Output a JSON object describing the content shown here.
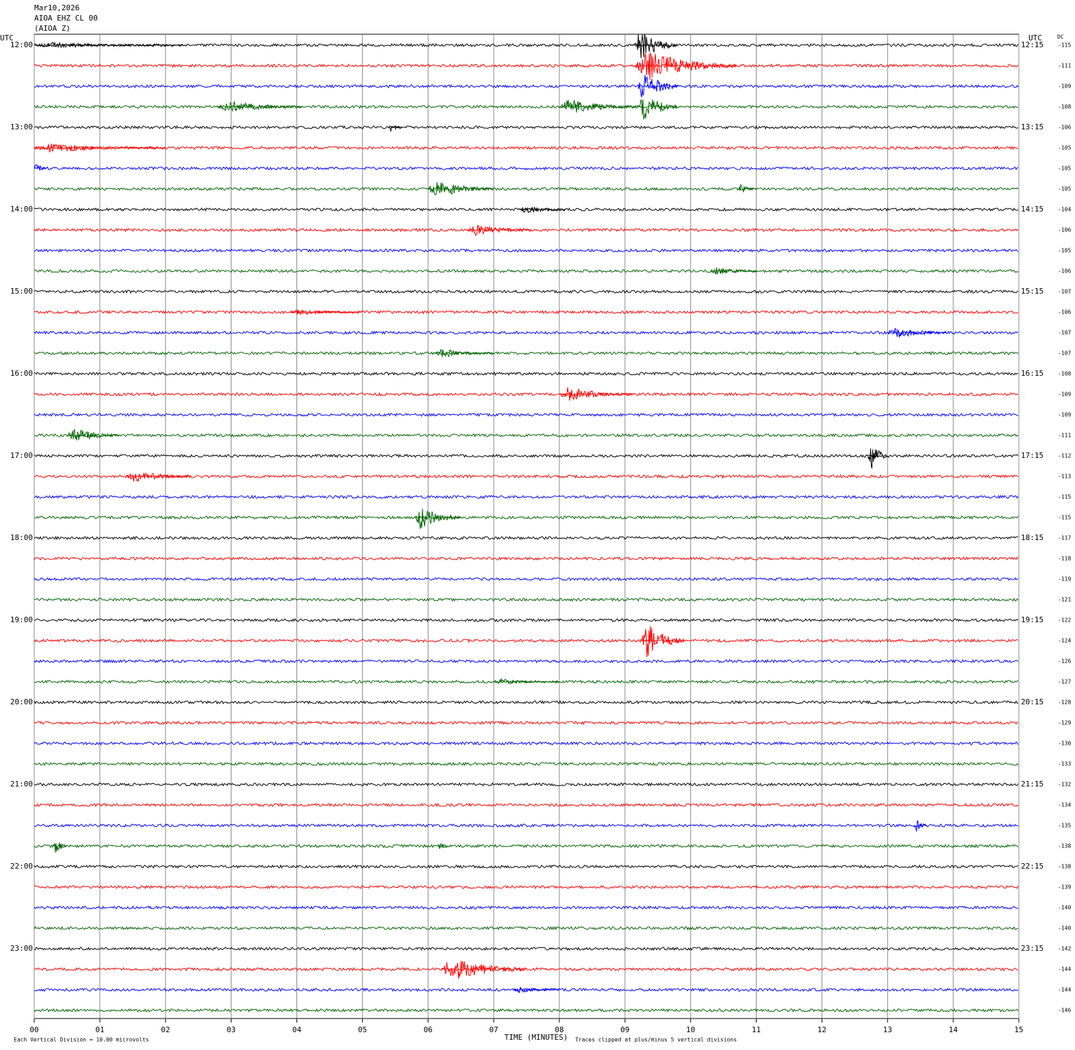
{
  "chart_data": {
    "type": "helicorder",
    "header": [
      "Mar10,2026",
      "AIOA EHZ CL 00",
      "(AIOA Z)"
    ],
    "left_axis_title": "UTC",
    "right_axis_title": "UTC",
    "dc_title": "DC",
    "left_labels": [
      "12:00",
      "13:00",
      "14:00",
      "15:00",
      "16:00",
      "17:00",
      "18:00",
      "19:00",
      "20:00",
      "21:00",
      "22:00",
      "23:00"
    ],
    "right_labels": [
      "12:15",
      "13:15",
      "14:15",
      "15:15",
      "16:15",
      "17:15",
      "18:15",
      "19:15",
      "20:15",
      "21:15",
      "22:15",
      "23:15"
    ],
    "dc_values": [
      "-115",
      "-111",
      "-109",
      "-108",
      "-106",
      "-105",
      "-105",
      "-105",
      "-104",
      "-106",
      "-105",
      "-106",
      "-107",
      "-106",
      "-107",
      "-107",
      "-108",
      "-109",
      "-109",
      "-111",
      "-112",
      "-113",
      "-115",
      "-115",
      "-117",
      "-118",
      "-119",
      "-121",
      "-122",
      "-124",
      "-126",
      "-127",
      "-128",
      "-129",
      "-130",
      "-133",
      "-132",
      "-134",
      "-135",
      "-138",
      "-138",
      "-139",
      "-140",
      "-140",
      "-142",
      "-144",
      "-144",
      "-146"
    ],
    "colors": [
      "#000000",
      "#ff0000",
      "#0000ff",
      "#006400"
    ],
    "xlim": [
      0,
      15
    ],
    "xticks": [
      {
        "value": 0,
        "label": "00"
      },
      {
        "value": 1,
        "label": "01"
      },
      {
        "value": 2,
        "label": "02"
      },
      {
        "value": 3,
        "label": "03"
      },
      {
        "value": 4,
        "label": "04"
      },
      {
        "value": 5,
        "label": "05"
      },
      {
        "value": 6,
        "label": "06"
      },
      {
        "value": 7,
        "label": "07"
      },
      {
        "value": 8,
        "label": "08"
      },
      {
        "value": 9,
        "label": "09"
      },
      {
        "value": 10,
        "label": "10"
      },
      {
        "value": 11,
        "label": "11"
      },
      {
        "value": 12,
        "label": "12"
      },
      {
        "value": 13,
        "label": "13"
      },
      {
        "value": 14,
        "label": "14"
      },
      {
        "value": 15,
        "label": "15"
      }
    ],
    "x_label": "TIME (MINUTES)",
    "footer_left": "Each Vertical Division =   10.00 microvolts",
    "footer_right": "Traces clipped at plus/minus 5 vertical divisions",
    "events": [
      {
        "trace": 0,
        "start": 0.0,
        "end": 2.3,
        "amplitude": 1
      },
      {
        "trace": 0,
        "start": 9.15,
        "end": 9.8,
        "amplitude": 5
      },
      {
        "trace": 1,
        "start": 9.15,
        "end": 10.7,
        "amplitude": 5
      },
      {
        "trace": 2,
        "start": 9.2,
        "end": 9.8,
        "amplitude": 5
      },
      {
        "trace": 3,
        "start": 2.8,
        "end": 4.1,
        "amplitude": 2
      },
      {
        "trace": 3,
        "start": 8.0,
        "end": 9.2,
        "amplitude": 2.5
      },
      {
        "trace": 3,
        "start": 9.2,
        "end": 9.8,
        "amplitude": 5
      },
      {
        "trace": 4,
        "start": 5.4,
        "end": 5.6,
        "amplitude": 2
      },
      {
        "trace": 5,
        "start": 0.0,
        "end": 2.0,
        "amplitude": 1.5
      },
      {
        "trace": 6,
        "start": 0.0,
        "end": 0.2,
        "amplitude": 2
      },
      {
        "trace": 7,
        "start": 6.0,
        "end": 7.0,
        "amplitude": 3
      },
      {
        "trace": 7,
        "start": 10.7,
        "end": 11.0,
        "amplitude": 2
      },
      {
        "trace": 8,
        "start": 7.4,
        "end": 8.1,
        "amplitude": 1.5
      },
      {
        "trace": 9,
        "start": 6.6,
        "end": 7.6,
        "amplitude": 2
      },
      {
        "trace": 11,
        "start": 10.3,
        "end": 11.0,
        "amplitude": 1.5
      },
      {
        "trace": 13,
        "start": 3.9,
        "end": 5.0,
        "amplitude": 1
      },
      {
        "trace": 14,
        "start": 13.0,
        "end": 13.9,
        "amplitude": 2
      },
      {
        "trace": 15,
        "start": 6.1,
        "end": 7.0,
        "amplitude": 1.5
      },
      {
        "trace": 17,
        "start": 8.0,
        "end": 9.1,
        "amplitude": 2.5
      },
      {
        "trace": 19,
        "start": 0.5,
        "end": 1.3,
        "amplitude": 2.5
      },
      {
        "trace": 20,
        "start": 12.7,
        "end": 13.0,
        "amplitude": 5
      },
      {
        "trace": 21,
        "start": 1.4,
        "end": 2.4,
        "amplitude": 2
      },
      {
        "trace": 23,
        "start": 5.8,
        "end": 6.5,
        "amplitude": 4
      },
      {
        "trace": 29,
        "start": 9.25,
        "end": 9.9,
        "amplitude": 6
      },
      {
        "trace": 31,
        "start": 7.0,
        "end": 8.0,
        "amplitude": 1
      },
      {
        "trace": 38,
        "start": 13.4,
        "end": 13.6,
        "amplitude": 2.5
      },
      {
        "trace": 39,
        "start": 0.3,
        "end": 0.5,
        "amplitude": 3
      },
      {
        "trace": 39,
        "start": 6.15,
        "end": 6.3,
        "amplitude": 2
      },
      {
        "trace": 45,
        "start": 6.2,
        "end": 7.5,
        "amplitude": 4
      },
      {
        "trace": 46,
        "start": 7.3,
        "end": 8.0,
        "amplitude": 1
      }
    ]
  }
}
